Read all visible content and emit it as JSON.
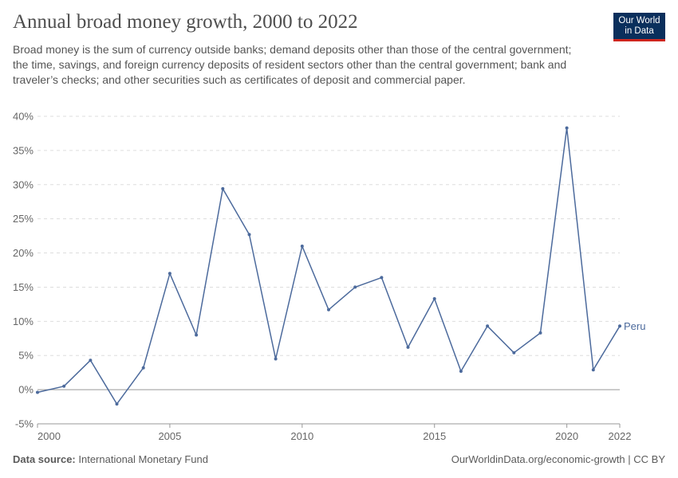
{
  "header": {
    "title": "Annual broad money growth, 2000 to 2022",
    "subtitle": "Broad money is the sum of currency outside banks; demand deposits other than those of the central government; the time, savings, and foreign currency deposits of resident sectors other than the central government; bank and traveler’s checks; and other securities such as certificates of deposit and commercial paper."
  },
  "logo": {
    "line1": "Our World",
    "line2": "in Data"
  },
  "footer": {
    "source_label": "Data source:",
    "source_value": "International Monetary Fund",
    "right": "OurWorldinData.org/economic-growth | CC BY"
  },
  "colors": {
    "series": "#4c6a9c",
    "grid": "#dddddd",
    "axis": "#999999"
  },
  "chart_data": {
    "type": "line",
    "title": "Annual broad money growth, 2000 to 2022",
    "xlabel": "",
    "ylabel": "",
    "xlim": [
      2000,
      2022
    ],
    "ylim": [
      -5,
      40
    ],
    "x_ticks": [
      2000,
      2005,
      2010,
      2015,
      2020,
      2022
    ],
    "y_ticks": [
      -5,
      0,
      5,
      10,
      15,
      20,
      25,
      30,
      35,
      40
    ],
    "y_tick_labels": [
      "-5%",
      "0%",
      "5%",
      "10%",
      "15%",
      "20%",
      "25%",
      "30%",
      "35%",
      "40%"
    ],
    "grid": "horizontal dashed",
    "series": [
      {
        "name": "Peru",
        "x": [
          2000,
          2001,
          2002,
          2003,
          2004,
          2005,
          2006,
          2007,
          2008,
          2009,
          2010,
          2011,
          2012,
          2013,
          2014,
          2015,
          2016,
          2017,
          2018,
          2019,
          2020,
          2021,
          2022
        ],
        "values": [
          -0.4,
          0.5,
          4.3,
          -2.1,
          3.2,
          17.0,
          8.0,
          29.4,
          22.7,
          4.5,
          21.0,
          11.7,
          15.0,
          16.4,
          6.2,
          13.3,
          2.7,
          9.3,
          5.4,
          8.3,
          38.3,
          2.9,
          9.3
        ]
      }
    ]
  }
}
